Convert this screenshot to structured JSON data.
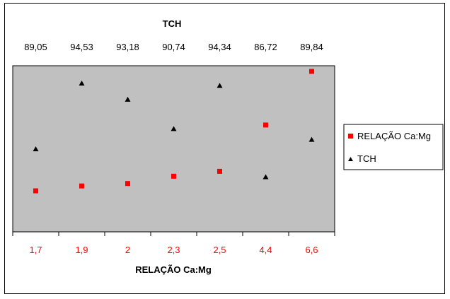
{
  "chart_data": {
    "type": "line",
    "top_axis_title": "TCH",
    "top_axis_labels": [
      "89,05",
      "94,53",
      "93,18",
      "90,74",
      "94,34",
      "86,72",
      "89,84"
    ],
    "xlabel": "RELAÇÃO Ca:Mg",
    "categories": [
      "1,7",
      "1,9",
      "2",
      "2,3",
      "2,5",
      "4,4",
      "6,6"
    ],
    "series": [
      {
        "name": "RELAÇÃO Ca:Mg",
        "values": [
          1.7,
          1.9,
          2.0,
          2.3,
          2.5,
          4.4,
          6.6
        ],
        "marker": "square",
        "color": "#ff0000",
        "trendline": "polynomial"
      },
      {
        "name": "TCH",
        "values": [
          89.05,
          94.53,
          93.18,
          90.74,
          94.34,
          86.72,
          89.84
        ],
        "marker": "triangle",
        "color": "#000000",
        "trendline": "polynomial"
      }
    ],
    "plot_background": "#c0c0c0",
    "grid": false,
    "legend_position": "right",
    "category_label_color": "#ff0000"
  }
}
